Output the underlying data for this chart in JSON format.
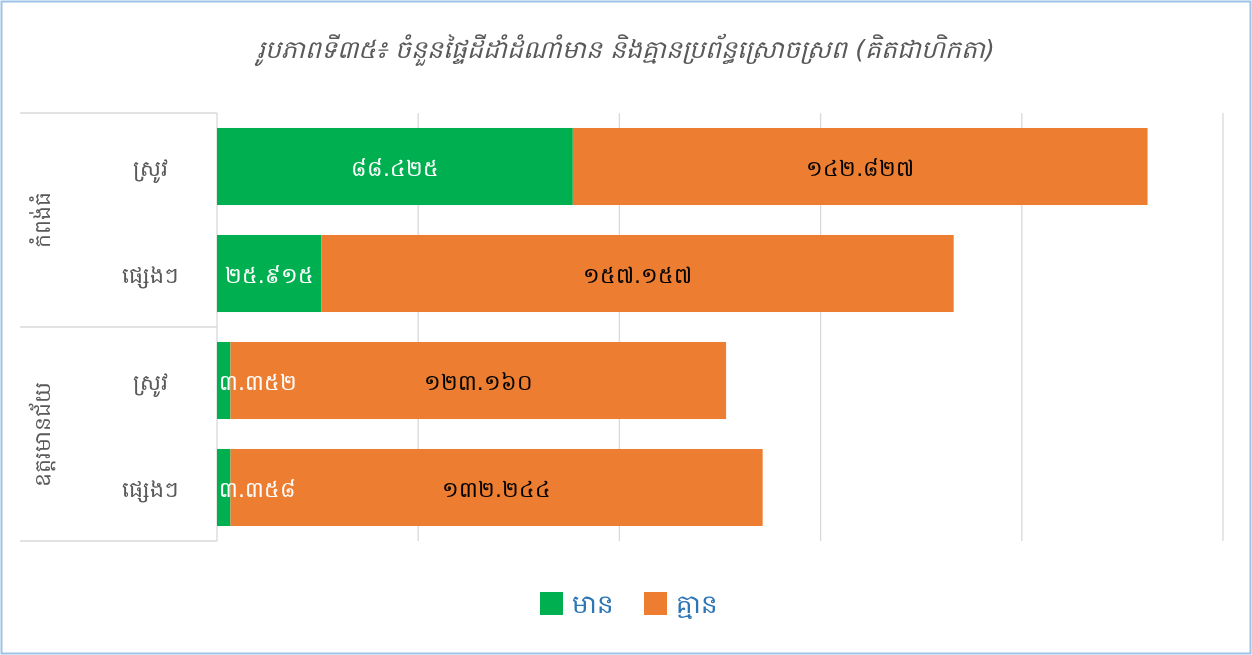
{
  "chart_data": {
    "type": "bar",
    "orientation": "horizontal",
    "stacked": true,
    "title": "រូបភាពទី៣៥៖ ចំនួនផ្ទៃដីដាំដំណាំមាន និងគ្មានប្រព័ន្ធស្រោចស្រព (គិតជាហិកតា)",
    "categories": [
      "ស្រូវ",
      "ផ្សេងៗ",
      "ស្រូវ",
      "ផ្សេងៗ"
    ],
    "annotations": [
      "កំពង់ធំ",
      "ឧត្តរមានជ័យ"
    ],
    "series": [
      {
        "name": "មាន",
        "color": "#00b050",
        "values": [
          88.425,
          25.915,
          3.352,
          3.358
        ],
        "value_labels": [
          "៨៨.៤២៥",
          "២៥.៩១៥",
          "៣.៣៥២",
          "៣.៣៥៨"
        ]
      },
      {
        "name": "គ្មាន",
        "color": "#ed7d31",
        "values": [
          142.827,
          157.157,
          123.16,
          132.244
        ],
        "value_labels": [
          "១៤២.៨២៧",
          "១៥៧.១៥៧",
          "១២៣.១៦០",
          "១៣២.២៤៤"
        ]
      }
    ],
    "xlim": [
      0,
      250
    ],
    "xticks": [
      {
        "value": 0,
        "label": null
      },
      {
        "value": 50,
        "label": null
      },
      {
        "value": 100,
        "label": null
      },
      {
        "value": 150,
        "label": null
      },
      {
        "value": 200,
        "label": null
      },
      {
        "value": 250,
        "label": null
      }
    ],
    "grid": "x",
    "legend": "bottom"
  }
}
